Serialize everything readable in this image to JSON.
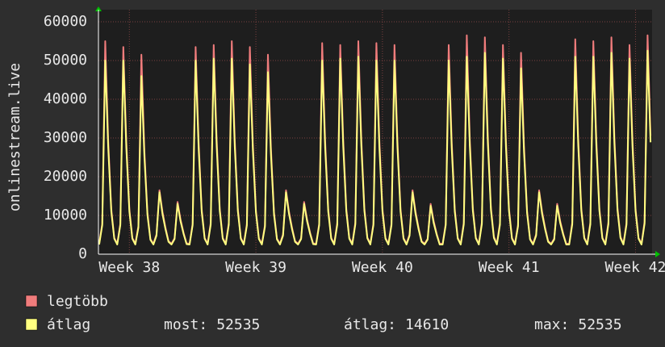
{
  "chart_data": {
    "type": "line",
    "y_label": "onlinestream.live",
    "xlim": [
      -41,
      694
    ],
    "xticks": [
      {
        "value": 0,
        "label": "Week 38"
      },
      {
        "value": 168,
        "label": "Week 39"
      },
      {
        "value": 336,
        "label": "Week 40"
      },
      {
        "value": 504,
        "label": "Week 41"
      },
      {
        "value": 672,
        "label": "Week 42"
      }
    ],
    "ylim": [
      0,
      60000
    ],
    "yticks": [
      0,
      10000,
      20000,
      30000,
      40000,
      50000,
      60000
    ],
    "grid": true,
    "x": [
      -40,
      -36,
      -32,
      -28,
      -24,
      -20,
      -16,
      -12,
      -8,
      -4,
      0,
      4,
      8,
      12,
      16,
      20,
      24,
      28,
      32,
      36,
      40,
      44,
      48,
      52,
      56,
      60,
      64,
      68,
      72,
      76,
      80,
      84,
      88,
      92,
      96,
      100,
      104,
      108,
      112,
      116,
      120,
      124,
      128,
      132,
      136,
      140,
      144,
      148,
      152,
      156,
      160,
      164,
      168,
      172,
      176,
      180,
      184,
      188,
      192,
      196,
      200,
      204,
      208,
      212,
      216,
      220,
      224,
      228,
      232,
      236,
      240,
      244,
      248,
      252,
      256,
      260,
      264,
      268,
      272,
      276,
      280,
      284,
      288,
      292,
      296,
      300,
      304,
      308,
      312,
      316,
      320,
      324,
      328,
      332,
      336,
      340,
      344,
      348,
      352,
      356,
      360,
      364,
      368,
      372,
      376,
      380,
      384,
      388,
      392,
      396,
      400,
      404,
      408,
      412,
      416,
      420,
      424,
      428,
      432,
      436,
      440,
      444,
      448,
      452,
      456,
      460,
      464,
      468,
      472,
      476,
      480,
      484,
      488,
      492,
      496,
      500,
      504,
      508,
      512,
      516,
      520,
      524,
      528,
      532,
      536,
      540,
      544,
      548,
      552,
      556,
      560,
      564,
      568,
      572,
      576,
      580,
      584,
      588,
      592,
      596,
      600,
      604,
      608,
      612,
      616,
      620,
      624,
      628,
      632,
      636,
      640,
      644,
      648,
      652,
      656,
      660,
      664,
      668,
      672,
      676,
      680,
      684,
      688,
      692
    ],
    "series": [
      {
        "name": "legtöbb",
        "color": "#f07c7c",
        "values": [
          2700,
          7900,
          55000,
          29200,
          11700,
          4200,
          2700,
          7900,
          53500,
          29200,
          11700,
          4200,
          2700,
          7300,
          51500,
          26800,
          10700,
          3900,
          2700,
          5100,
          16500,
          11000,
          6800,
          3400,
          2700,
          4100,
          13500,
          9000,
          5500,
          2800,
          2700,
          7900,
          53500,
          29200,
          11700,
          4200,
          2700,
          8100,
          54000,
          29500,
          11800,
          4200,
          2700,
          8100,
          55000,
          29500,
          11800,
          4200,
          2700,
          7800,
          53500,
          28600,
          11400,
          4100,
          2700,
          7500,
          51500,
          27500,
          10900,
          4000,
          2700,
          5100,
          16500,
          11000,
          6800,
          3400,
          2700,
          4100,
          13500,
          9000,
          5500,
          2800,
          2700,
          7900,
          54500,
          29200,
          11700,
          4200,
          2700,
          8100,
          54000,
          29500,
          11800,
          4200,
          2700,
          8200,
          55000,
          29800,
          11900,
          4300,
          2700,
          7900,
          54500,
          29200,
          11700,
          4200,
          2700,
          7900,
          54000,
          29200,
          11700,
          4200,
          2700,
          5100,
          16500,
          11000,
          6800,
          3400,
          2700,
          4000,
          13000,
          8600,
          5300,
          2700,
          2700,
          7900,
          54000,
          29200,
          11700,
          4200,
          2700,
          8200,
          56500,
          29800,
          11900,
          4300,
          2700,
          8300,
          56000,
          30300,
          12100,
          4500,
          2700,
          8100,
          54000,
          29500,
          11800,
          4200,
          2700,
          7600,
          52000,
          28000,
          11200,
          4000,
          2700,
          5100,
          16500,
          11000,
          6800,
          3400,
          2700,
          4000,
          13000,
          8600,
          5300,
          2700,
          2700,
          8200,
          55500,
          29800,
          11900,
          4300,
          2700,
          8200,
          55000,
          29800,
          11900,
          4300,
          2700,
          8300,
          56000,
          30300,
          12100,
          4500,
          2700,
          8100,
          54000,
          29500,
          11800,
          4200,
          2700,
          8400,
          56500,
          30600
        ]
      },
      {
        "name": "átlag",
        "color": "#ffff80",
        "values": [
          2500,
          7500,
          50000,
          27500,
          11000,
          4000,
          2500,
          7500,
          50000,
          27500,
          11000,
          4000,
          2500,
          6900,
          46000,
          25300,
          10100,
          3700,
          2500,
          4800,
          16000,
          10400,
          6400,
          3200,
          2500,
          3900,
          13000,
          8500,
          5200,
          2600,
          2500,
          7500,
          50000,
          27500,
          11000,
          4000,
          2500,
          7600,
          50500,
          27800,
          11100,
          4000,
          2500,
          7600,
          50500,
          27800,
          11100,
          4000,
          2500,
          7400,
          49000,
          27000,
          10800,
          3900,
          2500,
          7100,
          47000,
          25900,
          10300,
          3800,
          2500,
          4800,
          16000,
          10400,
          6400,
          3200,
          2500,
          3900,
          13000,
          8500,
          5200,
          2600,
          2500,
          7500,
          50000,
          27500,
          11000,
          4000,
          2500,
          7600,
          50500,
          27800,
          11100,
          4000,
          2500,
          7700,
          51000,
          28100,
          11200,
          4100,
          2500,
          7500,
          50000,
          27500,
          11000,
          4000,
          2500,
          7500,
          50000,
          27500,
          11000,
          4000,
          2500,
          4800,
          16000,
          10400,
          6400,
          3200,
          2500,
          3800,
          12500,
          8100,
          5000,
          2500,
          2500,
          7500,
          50000,
          27500,
          11000,
          4000,
          2500,
          7700,
          51000,
          28100,
          11200,
          4100,
          2500,
          7800,
          52000,
          28600,
          11400,
          4200,
          2500,
          7600,
          50500,
          27800,
          11100,
          4000,
          2500,
          7200,
          48000,
          26400,
          10600,
          3800,
          2500,
          4800,
          16000,
          10400,
          6400,
          3200,
          2500,
          3800,
          12500,
          8100,
          5000,
          2500,
          2500,
          7700,
          51000,
          28100,
          11200,
          4100,
          2500,
          7700,
          51000,
          28100,
          11200,
          4100,
          2500,
          7800,
          52000,
          28600,
          11400,
          4200,
          2500,
          7600,
          50500,
          27800,
          11100,
          4000,
          2500,
          7900,
          52535,
          28900
        ]
      }
    ],
    "stats": [
      {
        "label": "most:",
        "value": 52535
      },
      {
        "label": "átlag:",
        "value": 14610
      },
      {
        "label": "max:",
        "value": 52535
      }
    ]
  }
}
